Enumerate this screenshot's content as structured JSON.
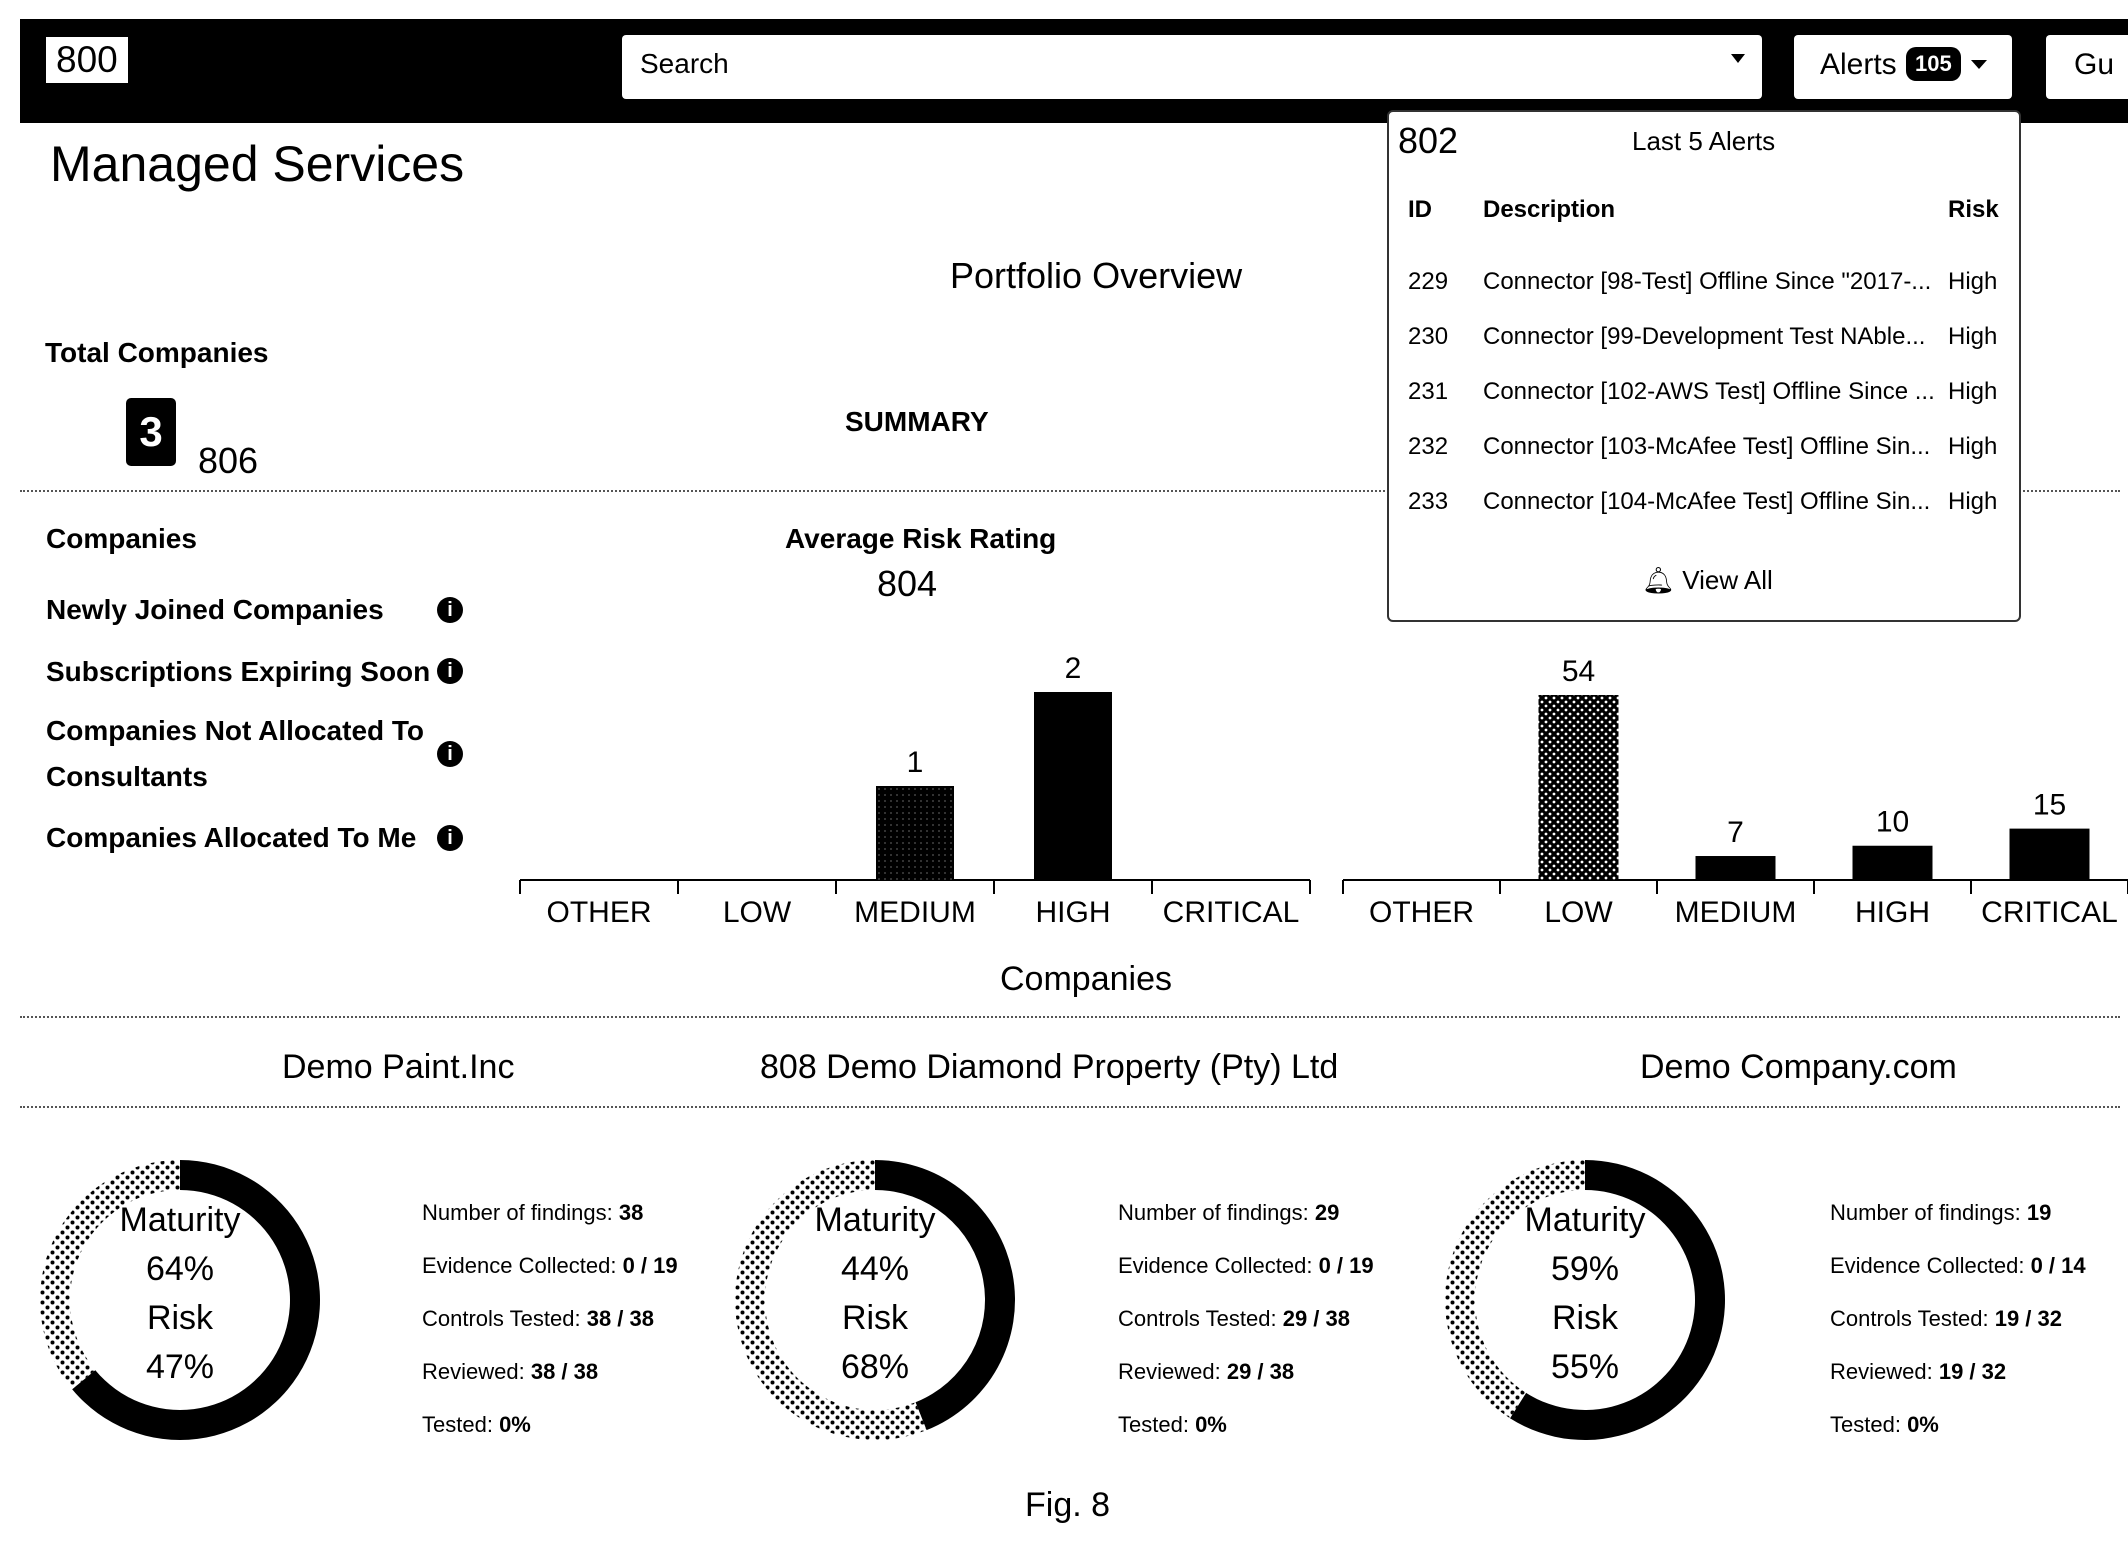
{
  "header": {
    "ref": "800",
    "search_placeholder": "Search",
    "alerts_label": "Alerts",
    "alerts_count": "105",
    "user_label": "Gu"
  },
  "page": {
    "title": "Managed Services",
    "portfolio_title": "Portfolio Overview",
    "total_companies_label": "Total Companies",
    "total_companies_value": "3",
    "total_ref": "806",
    "summary_label": "SUMMARY"
  },
  "companies_panel": {
    "heading": "Companies",
    "items": [
      "Newly Joined Companies",
      "Subscriptions Expiring Soon",
      "Companies Not Allocated To Consultants",
      "Companies Allocated To Me"
    ]
  },
  "alerts_dropdown": {
    "ref": "802",
    "title": "Last 5 Alerts",
    "columns": [
      "ID",
      "Description",
      "Risk"
    ],
    "rows": [
      {
        "id": "229",
        "description": "Connector [98-Test] Offline Since \"2017-...",
        "risk": "High"
      },
      {
        "id": "230",
        "description": "Connector [99-Development Test NAble...",
        "risk": "High"
      },
      {
        "id": "231",
        "description": "Connector [102-AWS Test] Offline Since ...",
        "risk": "High"
      },
      {
        "id": "232",
        "description": "Connector [103-McAfee Test] Offline Sin...",
        "risk": "High"
      },
      {
        "id": "233",
        "description": "Connector [104-McAfee Test] Offline Sin...",
        "risk": "High"
      }
    ],
    "view_all_label": "View All"
  },
  "chart_labels": {
    "avg_risk_title": "Average Risk Rating",
    "avg_risk_ref": "804",
    "x_title": "Companies"
  },
  "chart_data": [
    {
      "type": "bar",
      "title": "Average Risk Rating",
      "categories": [
        "OTHER",
        "LOW",
        "MEDIUM",
        "HIGH",
        "CRITICAL"
      ],
      "values": [
        null,
        null,
        1,
        2,
        null
      ],
      "patterns": [
        "solid",
        "solid",
        "dark-dotted",
        "solid",
        "solid"
      ]
    },
    {
      "type": "bar",
      "title": "",
      "categories": [
        "OTHER",
        "LOW",
        "MEDIUM",
        "HIGH",
        "CRITICAL"
      ],
      "values": [
        null,
        54,
        7,
        10,
        15
      ],
      "patterns": [
        "solid",
        "dotted",
        "solid",
        "solid",
        "solid"
      ]
    }
  ],
  "companies_strip": {
    "names": [
      "Demo Paint.Inc",
      "808 Demo Diamond Property (Pty) Ltd",
      "Demo Company.com"
    ],
    "cards": [
      {
        "maturity_label": "Maturity",
        "maturity": "64%",
        "maturity_value": 64,
        "risk_label": "Risk",
        "risk": "47%",
        "stats": [
          {
            "label": "Number of findings:",
            "value": "38"
          },
          {
            "label": "Evidence Collected:",
            "value": "0 / 19"
          },
          {
            "label": "Controls Tested:",
            "value": "38 / 38"
          },
          {
            "label": "Reviewed:",
            "value": "38 / 38"
          },
          {
            "label": "Tested:",
            "value": "0%"
          }
        ]
      },
      {
        "maturity_label": "Maturity",
        "maturity": "44%",
        "maturity_value": 44,
        "risk_label": "Risk",
        "risk": "68%",
        "stats": [
          {
            "label": "Number of findings:",
            "value": "29"
          },
          {
            "label": "Evidence Collected:",
            "value": "0 / 19"
          },
          {
            "label": "Controls Tested:",
            "value": "29 / 38"
          },
          {
            "label": "Reviewed:",
            "value": "29 / 38"
          },
          {
            "label": "Tested:",
            "value": "0%"
          }
        ]
      },
      {
        "maturity_label": "Maturity",
        "maturity": "59%",
        "maturity_value": 59,
        "risk_label": "Risk",
        "risk": "55%",
        "stats": [
          {
            "label": "Number of findings:",
            "value": "19"
          },
          {
            "label": "Evidence Collected:",
            "value": "0 / 14"
          },
          {
            "label": "Controls Tested:",
            "value": "19 / 32"
          },
          {
            "label": "Reviewed:",
            "value": "19 / 32"
          },
          {
            "label": "Tested:",
            "value": "0%"
          }
        ]
      }
    ]
  },
  "figure_label": "Fig. 8"
}
